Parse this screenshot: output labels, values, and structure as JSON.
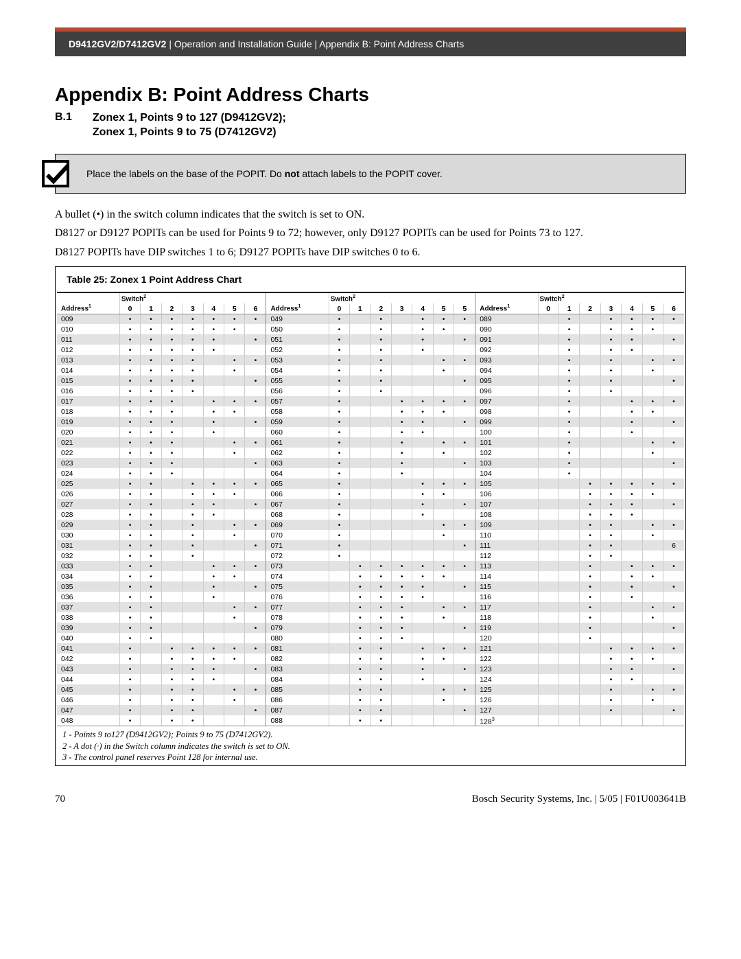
{
  "header": {
    "model": "D9412GV2/D7412GV2",
    "rest": " | Operation and Installation Guide | Appendix B: Point Address Charts"
  },
  "title": "Appendix B: Point Address Charts",
  "section": {
    "num": "B.1",
    "line1": "Zonex 1, Points 9 to 127 (D9412GV2);",
    "line2": "Zonex 1, Points 9 to 75 (D7412GV2)"
  },
  "notice": {
    "pre": "Place the labels on the base of the POPIT. Do ",
    "bold": "not",
    "post": " attach labels to the POPIT cover."
  },
  "para1": "A bullet (•)  in the switch column indicates that the switch is set to ON.",
  "para2": "D8127 or D9127 POPITs can be used for Points 9 to 72; however, only D9127 POPITs can be used for Points 73 to 127.",
  "para3": "D8127 POPITs have DIP switches 1 to 6; D9127 POPITs have DIP switches 0 to 6.",
  "table_caption": "Table 25:     Zonex 1 Point Address Chart",
  "col_headers": [
    "0",
    "1",
    "2",
    "3",
    "4",
    "5",
    "6"
  ],
  "col3_headers": [
    "0",
    "1",
    "2",
    "3",
    "4",
    "5",
    "5"
  ],
  "addr_label": "Address",
  "switch_label": "Switch",
  "footnotes": [
    "1 - Points 9 to127 (D9412GV2); Points 9 to 75 (D7412GV2).",
    "2 - A dot (·) in the Switch column indicates the switch is set to ON.",
    "3 - The control panel reserves Point 128 for internal use."
  ],
  "footer": {
    "page": "70",
    "right": "Bosch Security Systems, Inc. | 5/05 | F01U003641B"
  },
  "colors": {
    "header_bg": "#404040",
    "accent": "#b94a30",
    "row_shade": "#e2e2e2"
  },
  "dot": "•",
  "blocks": [
    {
      "addrs": [
        "009",
        "010",
        "011",
        "012",
        "013",
        "014",
        "015",
        "016",
        "017",
        "018",
        "019",
        "020",
        "021",
        "022",
        "023",
        "024",
        "025",
        "026",
        "027",
        "028",
        "029",
        "030",
        "031",
        "032",
        "033",
        "034",
        "035",
        "036",
        "037",
        "038",
        "039",
        "040",
        "041",
        "042",
        "043",
        "044",
        "045",
        "046",
        "047",
        "048"
      ],
      "sw": [
        [
          1,
          1,
          1,
          1,
          1,
          1,
          1
        ],
        [
          1,
          1,
          1,
          1,
          1,
          1,
          0
        ],
        [
          1,
          1,
          1,
          1,
          1,
          0,
          1
        ],
        [
          1,
          1,
          1,
          1,
          1,
          0,
          0
        ],
        [
          1,
          1,
          1,
          1,
          0,
          1,
          1
        ],
        [
          1,
          1,
          1,
          1,
          0,
          1,
          0
        ],
        [
          1,
          1,
          1,
          1,
          0,
          0,
          1
        ],
        [
          1,
          1,
          1,
          1,
          0,
          0,
          0
        ],
        [
          1,
          1,
          1,
          0,
          1,
          1,
          1
        ],
        [
          1,
          1,
          1,
          0,
          1,
          1,
          0
        ],
        [
          1,
          1,
          1,
          0,
          1,
          0,
          1
        ],
        [
          1,
          1,
          1,
          0,
          1,
          0,
          0
        ],
        [
          1,
          1,
          1,
          0,
          0,
          1,
          1
        ],
        [
          1,
          1,
          1,
          0,
          0,
          1,
          0
        ],
        [
          1,
          1,
          1,
          0,
          0,
          0,
          1
        ],
        [
          1,
          1,
          1,
          0,
          0,
          0,
          0
        ],
        [
          1,
          1,
          0,
          1,
          1,
          1,
          1
        ],
        [
          1,
          1,
          0,
          1,
          1,
          1,
          0
        ],
        [
          1,
          1,
          0,
          1,
          1,
          0,
          1
        ],
        [
          1,
          1,
          0,
          1,
          1,
          0,
          0
        ],
        [
          1,
          1,
          0,
          1,
          0,
          1,
          1
        ],
        [
          1,
          1,
          0,
          1,
          0,
          1,
          0
        ],
        [
          1,
          1,
          0,
          1,
          0,
          0,
          1
        ],
        [
          1,
          1,
          0,
          1,
          0,
          0,
          0
        ],
        [
          1,
          1,
          0,
          0,
          1,
          1,
          1
        ],
        [
          1,
          1,
          0,
          0,
          1,
          1,
          0
        ],
        [
          1,
          1,
          0,
          0,
          1,
          0,
          1
        ],
        [
          1,
          1,
          0,
          0,
          1,
          0,
          0
        ],
        [
          1,
          1,
          0,
          0,
          0,
          1,
          1
        ],
        [
          1,
          1,
          0,
          0,
          0,
          1,
          0
        ],
        [
          1,
          1,
          0,
          0,
          0,
          0,
          1
        ],
        [
          1,
          1,
          0,
          0,
          0,
          0,
          0
        ],
        [
          1,
          0,
          1,
          1,
          1,
          1,
          1
        ],
        [
          1,
          0,
          1,
          1,
          1,
          1,
          0
        ],
        [
          1,
          0,
          1,
          1,
          1,
          0,
          1
        ],
        [
          1,
          0,
          1,
          1,
          1,
          0,
          0
        ],
        [
          1,
          0,
          1,
          1,
          0,
          1,
          1
        ],
        [
          1,
          0,
          1,
          1,
          0,
          1,
          0
        ],
        [
          1,
          0,
          1,
          1,
          0,
          0,
          1
        ],
        [
          1,
          0,
          1,
          1,
          0,
          0,
          0
        ]
      ]
    },
    {
      "addrs": [
        "049",
        "050",
        "051",
        "052",
        "053",
        "054",
        "055",
        "056",
        "057",
        "058",
        "059",
        "060",
        "061",
        "062",
        "063",
        "064",
        "065",
        "066",
        "067",
        "068",
        "069",
        "070",
        "071",
        "072",
        "073",
        "074",
        "075",
        "076",
        "077",
        "078",
        "079",
        "080",
        "081",
        "082",
        "083",
        "084",
        "085",
        "086",
        "087",
        "088"
      ],
      "sw": [
        [
          1,
          0,
          1,
          0,
          1,
          1,
          1
        ],
        [
          1,
          0,
          1,
          0,
          1,
          1,
          0
        ],
        [
          1,
          0,
          1,
          0,
          1,
          0,
          1
        ],
        [
          1,
          0,
          1,
          0,
          1,
          0,
          0
        ],
        [
          1,
          0,
          1,
          0,
          0,
          1,
          1
        ],
        [
          1,
          0,
          1,
          0,
          0,
          1,
          0
        ],
        [
          1,
          0,
          1,
          0,
          0,
          0,
          1
        ],
        [
          1,
          0,
          1,
          0,
          0,
          0,
          0
        ],
        [
          1,
          0,
          0,
          1,
          1,
          1,
          1
        ],
        [
          1,
          0,
          0,
          1,
          1,
          1,
          0
        ],
        [
          1,
          0,
          0,
          1,
          1,
          0,
          1
        ],
        [
          1,
          0,
          0,
          1,
          1,
          0,
          0
        ],
        [
          1,
          0,
          0,
          1,
          0,
          1,
          1
        ],
        [
          1,
          0,
          0,
          1,
          0,
          1,
          0
        ],
        [
          1,
          0,
          0,
          1,
          0,
          0,
          1
        ],
        [
          1,
          0,
          0,
          1,
          0,
          0,
          0
        ],
        [
          1,
          0,
          0,
          0,
          1,
          1,
          1
        ],
        [
          1,
          0,
          0,
          0,
          1,
          1,
          0
        ],
        [
          1,
          0,
          0,
          0,
          1,
          0,
          1
        ],
        [
          1,
          0,
          0,
          0,
          1,
          0,
          0
        ],
        [
          1,
          0,
          0,
          0,
          0,
          1,
          1
        ],
        [
          1,
          0,
          0,
          0,
          0,
          1,
          0
        ],
        [
          1,
          0,
          0,
          0,
          0,
          0,
          1
        ],
        [
          1,
          0,
          0,
          0,
          0,
          0,
          0
        ],
        [
          0,
          1,
          1,
          1,
          1,
          1,
          1
        ],
        [
          0,
          1,
          1,
          1,
          1,
          1,
          0
        ],
        [
          0,
          1,
          1,
          1,
          1,
          0,
          1
        ],
        [
          0,
          1,
          1,
          1,
          1,
          0,
          0
        ],
        [
          0,
          1,
          1,
          1,
          0,
          1,
          1
        ],
        [
          0,
          1,
          1,
          1,
          0,
          1,
          0
        ],
        [
          0,
          1,
          1,
          1,
          0,
          0,
          1
        ],
        [
          0,
          1,
          1,
          1,
          0,
          0,
          0
        ],
        [
          0,
          1,
          1,
          0,
          1,
          1,
          1
        ],
        [
          0,
          1,
          1,
          0,
          1,
          1,
          0
        ],
        [
          0,
          1,
          1,
          0,
          1,
          0,
          1
        ],
        [
          0,
          1,
          1,
          0,
          1,
          0,
          0
        ],
        [
          0,
          1,
          1,
          0,
          0,
          1,
          1
        ],
        [
          0,
          1,
          1,
          0,
          0,
          1,
          0
        ],
        [
          0,
          1,
          1,
          0,
          0,
          0,
          1
        ],
        [
          0,
          1,
          1,
          0,
          0,
          0,
          0
        ]
      ]
    },
    {
      "addrs": [
        "089",
        "090",
        "091",
        "092",
        "093",
        "094",
        "095",
        "096",
        "097",
        "098",
        "099",
        "100",
        "101",
        "102",
        "103",
        "104",
        "105",
        "106",
        "107",
        "108",
        "109",
        "110",
        "111",
        "112",
        "113",
        "114",
        "115",
        "116",
        "117",
        "118",
        "119",
        "120",
        "121",
        "122",
        "123",
        "124",
        "125",
        "126",
        "127",
        "128"
      ],
      "last_sup": "3",
      "sw": [
        [
          0,
          1,
          0,
          1,
          1,
          1,
          1
        ],
        [
          0,
          1,
          0,
          1,
          1,
          1,
          0
        ],
        [
          0,
          1,
          0,
          1,
          1,
          0,
          1
        ],
        [
          0,
          1,
          0,
          1,
          1,
          0,
          0
        ],
        [
          0,
          1,
          0,
          1,
          0,
          1,
          1
        ],
        [
          0,
          1,
          0,
          1,
          0,
          1,
          0
        ],
        [
          0,
          1,
          0,
          1,
          0,
          0,
          1
        ],
        [
          0,
          1,
          0,
          1,
          0,
          0,
          0
        ],
        [
          0,
          1,
          0,
          0,
          1,
          1,
          1
        ],
        [
          0,
          1,
          0,
          0,
          1,
          1,
          0
        ],
        [
          0,
          1,
          0,
          0,
          1,
          0,
          1
        ],
        [
          0,
          1,
          0,
          0,
          1,
          0,
          0
        ],
        [
          0,
          1,
          0,
          0,
          0,
          1,
          1
        ],
        [
          0,
          1,
          0,
          0,
          0,
          1,
          0
        ],
        [
          0,
          1,
          0,
          0,
          0,
          0,
          1
        ],
        [
          0,
          1,
          0,
          0,
          0,
          0,
          0
        ],
        [
          0,
          0,
          1,
          1,
          1,
          1,
          1
        ],
        [
          0,
          0,
          1,
          1,
          1,
          1,
          0
        ],
        [
          0,
          0,
          1,
          1,
          1,
          0,
          1
        ],
        [
          0,
          0,
          1,
          1,
          1,
          0,
          0
        ],
        [
          0,
          0,
          1,
          1,
          0,
          1,
          1
        ],
        [
          0,
          0,
          1,
          1,
          0,
          1,
          0
        ],
        [
          0,
          0,
          1,
          1,
          0,
          0,
          "6"
        ],
        [
          0,
          0,
          1,
          1,
          0,
          0,
          0
        ],
        [
          0,
          0,
          1,
          0,
          1,
          1,
          1
        ],
        [
          0,
          0,
          1,
          0,
          1,
          1,
          0
        ],
        [
          0,
          0,
          1,
          0,
          1,
          0,
          1
        ],
        [
          0,
          0,
          1,
          0,
          1,
          0,
          0
        ],
        [
          0,
          0,
          1,
          0,
          0,
          1,
          1
        ],
        [
          0,
          0,
          1,
          0,
          0,
          1,
          0
        ],
        [
          0,
          0,
          1,
          0,
          0,
          0,
          1
        ],
        [
          0,
          0,
          1,
          0,
          0,
          0,
          0
        ],
        [
          0,
          0,
          0,
          1,
          1,
          1,
          1
        ],
        [
          0,
          0,
          0,
          1,
          1,
          1,
          0
        ],
        [
          0,
          0,
          0,
          1,
          1,
          0,
          1
        ],
        [
          0,
          0,
          0,
          1,
          1,
          0,
          0
        ],
        [
          0,
          0,
          0,
          1,
          0,
          1,
          1
        ],
        [
          0,
          0,
          0,
          1,
          0,
          1,
          0
        ],
        [
          0,
          0,
          0,
          1,
          0,
          0,
          1
        ],
        [
          0,
          0,
          0,
          0,
          0,
          0,
          0
        ]
      ]
    }
  ]
}
